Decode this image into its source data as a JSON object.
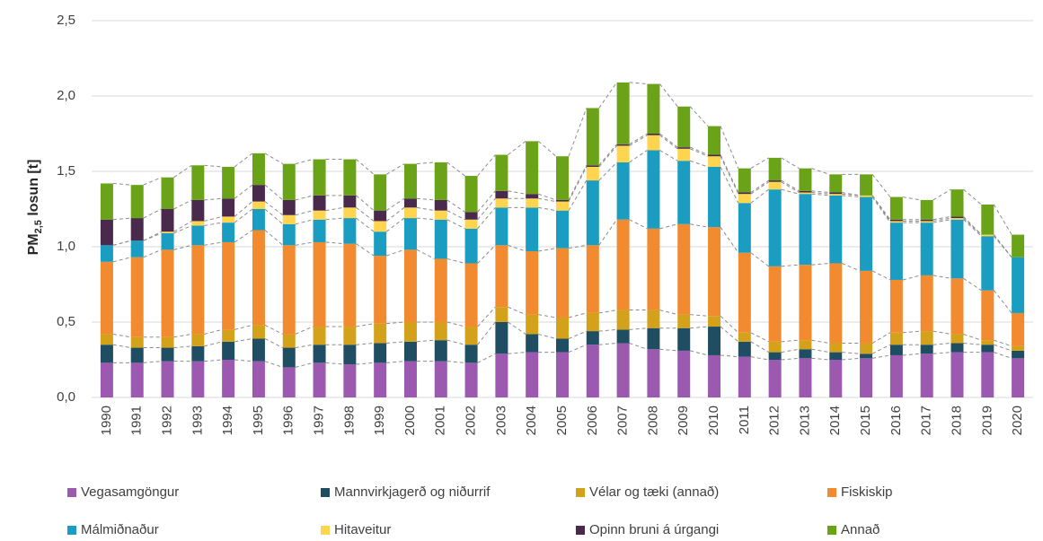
{
  "chart_data": {
    "type": "stacked_bar",
    "y_label": "PM",
    "y_label_sub": "2,5",
    "y_label_suffix": " losun [t]",
    "categories": [
      "1990",
      "1991",
      "1992",
      "1993",
      "1994",
      "1995",
      "1996",
      "1997",
      "1998",
      "1999",
      "2000",
      "2001",
      "2002",
      "2003",
      "2004",
      "2005",
      "2006",
      "2007",
      "2008",
      "2009",
      "2010",
      "2011",
      "2012",
      "2013",
      "2014",
      "2015",
      "2016",
      "2017",
      "2018",
      "2019",
      "2020"
    ],
    "ylim": [
      0,
      2.5
    ],
    "yticks": [
      {
        "value": 0,
        "label": "0,0"
      },
      {
        "value": 0.5,
        "label": "0,5"
      },
      {
        "value": 1,
        "label": "1,0"
      },
      {
        "value": 1.5,
        "label": "1,5"
      },
      {
        "value": 2,
        "label": "2,0"
      },
      {
        "value": 2.5,
        "label": "2,5"
      }
    ],
    "grid": true,
    "series": [
      {
        "name": "Vegasamgöngur",
        "color": "#9b59b0",
        "values": [
          0.23,
          0.23,
          0.24,
          0.24,
          0.25,
          0.24,
          0.2,
          0.23,
          0.22,
          0.23,
          0.24,
          0.24,
          0.23,
          0.29,
          0.3,
          0.3,
          0.35,
          0.36,
          0.32,
          0.31,
          0.28,
          0.27,
          0.25,
          0.26,
          0.25,
          0.26,
          0.28,
          0.29,
          0.3,
          0.3,
          0.26
        ]
      },
      {
        "name": "Mannvirkjagerð og niðurrif",
        "color": "#1f4e63",
        "values": [
          0.12,
          0.1,
          0.09,
          0.1,
          0.12,
          0.15,
          0.13,
          0.12,
          0.13,
          0.13,
          0.13,
          0.14,
          0.12,
          0.21,
          0.12,
          0.09,
          0.09,
          0.09,
          0.14,
          0.15,
          0.19,
          0.1,
          0.05,
          0.06,
          0.05,
          0.03,
          0.07,
          0.06,
          0.06,
          0.05,
          0.05
        ]
      },
      {
        "name": "Vélar og tæki (annað)",
        "color": "#d4a21a",
        "values": [
          0.07,
          0.07,
          0.07,
          0.08,
          0.08,
          0.09,
          0.09,
          0.12,
          0.12,
          0.13,
          0.13,
          0.12,
          0.12,
          0.1,
          0.13,
          0.14,
          0.12,
          0.13,
          0.12,
          0.09,
          0.07,
          0.06,
          0.07,
          0.06,
          0.06,
          0.07,
          0.08,
          0.09,
          0.06,
          0.03,
          0.03
        ]
      },
      {
        "name": "Fiskiskip",
        "color": "#f28a30",
        "values": [
          0.48,
          0.53,
          0.58,
          0.59,
          0.58,
          0.63,
          0.59,
          0.56,
          0.55,
          0.45,
          0.48,
          0.42,
          0.42,
          0.41,
          0.42,
          0.46,
          0.45,
          0.6,
          0.54,
          0.6,
          0.59,
          0.53,
          0.5,
          0.5,
          0.53,
          0.48,
          0.35,
          0.37,
          0.37,
          0.33,
          0.22
        ]
      },
      {
        "name": "Málmiðnaður",
        "color": "#1a9dc0",
        "values": [
          0.11,
          0.11,
          0.11,
          0.13,
          0.13,
          0.14,
          0.14,
          0.15,
          0.17,
          0.16,
          0.21,
          0.26,
          0.23,
          0.25,
          0.29,
          0.25,
          0.43,
          0.38,
          0.52,
          0.42,
          0.4,
          0.33,
          0.51,
          0.47,
          0.45,
          0.49,
          0.38,
          0.35,
          0.39,
          0.36,
          0.37
        ]
      },
      {
        "name": "Hitaveitur",
        "color": "#ffd54f",
        "values": [
          0,
          0,
          0.01,
          0.03,
          0.04,
          0.05,
          0.06,
          0.06,
          0.07,
          0.07,
          0.07,
          0.06,
          0.06,
          0.06,
          0.06,
          0.06,
          0.09,
          0.11,
          0.1,
          0.08,
          0.07,
          0.06,
          0.05,
          0.01,
          0.01,
          0.01,
          0.01,
          0.01,
          0.01,
          0.01,
          0
        ]
      },
      {
        "name": "Opinn bruni á úrgangi",
        "color": "#4a2a4c",
        "values": [
          0.17,
          0.15,
          0.15,
          0.14,
          0.12,
          0.11,
          0.1,
          0.1,
          0.08,
          0.07,
          0.06,
          0.07,
          0.05,
          0.05,
          0.03,
          0.01,
          0.01,
          0.01,
          0.01,
          0.01,
          0.01,
          0.01,
          0.01,
          0.01,
          0.01,
          0,
          0.01,
          0.01,
          0.01,
          0,
          0
        ]
      },
      {
        "name": "Annað",
        "color": "#6aa318",
        "values": [
          0.24,
          0.22,
          0.21,
          0.23,
          0.21,
          0.21,
          0.24,
          0.24,
          0.24,
          0.24,
          0.23,
          0.25,
          0.24,
          0.24,
          0.35,
          0.29,
          0.38,
          0.41,
          0.33,
          0.27,
          0.19,
          0.16,
          0.15,
          0.15,
          0.12,
          0.14,
          0.15,
          0.13,
          0.18,
          0.2,
          0.15
        ]
      }
    ]
  }
}
